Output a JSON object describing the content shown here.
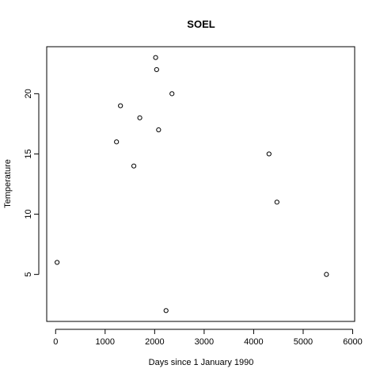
{
  "chart_data": {
    "type": "scatter",
    "title": "SOEL",
    "xlabel": "Days since 1 January 1990",
    "ylabel": "Temperature",
    "xlim": [
      -180,
      6040
    ],
    "ylim": [
      1.1,
      23.9
    ],
    "xticks": [
      0,
      1000,
      2000,
      3000,
      4000,
      5000,
      6000
    ],
    "yticks": [
      5,
      10,
      15,
      20
    ],
    "grid": false,
    "points": [
      {
        "x": 30,
        "y": 6
      },
      {
        "x": 1230,
        "y": 16
      },
      {
        "x": 1310,
        "y": 19
      },
      {
        "x": 1580,
        "y": 14
      },
      {
        "x": 1700,
        "y": 18
      },
      {
        "x": 2020,
        "y": 23
      },
      {
        "x": 2040,
        "y": 22
      },
      {
        "x": 2080,
        "y": 17
      },
      {
        "x": 2230,
        "y": 2
      },
      {
        "x": 2350,
        "y": 20
      },
      {
        "x": 4310,
        "y": 15
      },
      {
        "x": 4470,
        "y": 11
      },
      {
        "x": 5470,
        "y": 5
      }
    ]
  }
}
